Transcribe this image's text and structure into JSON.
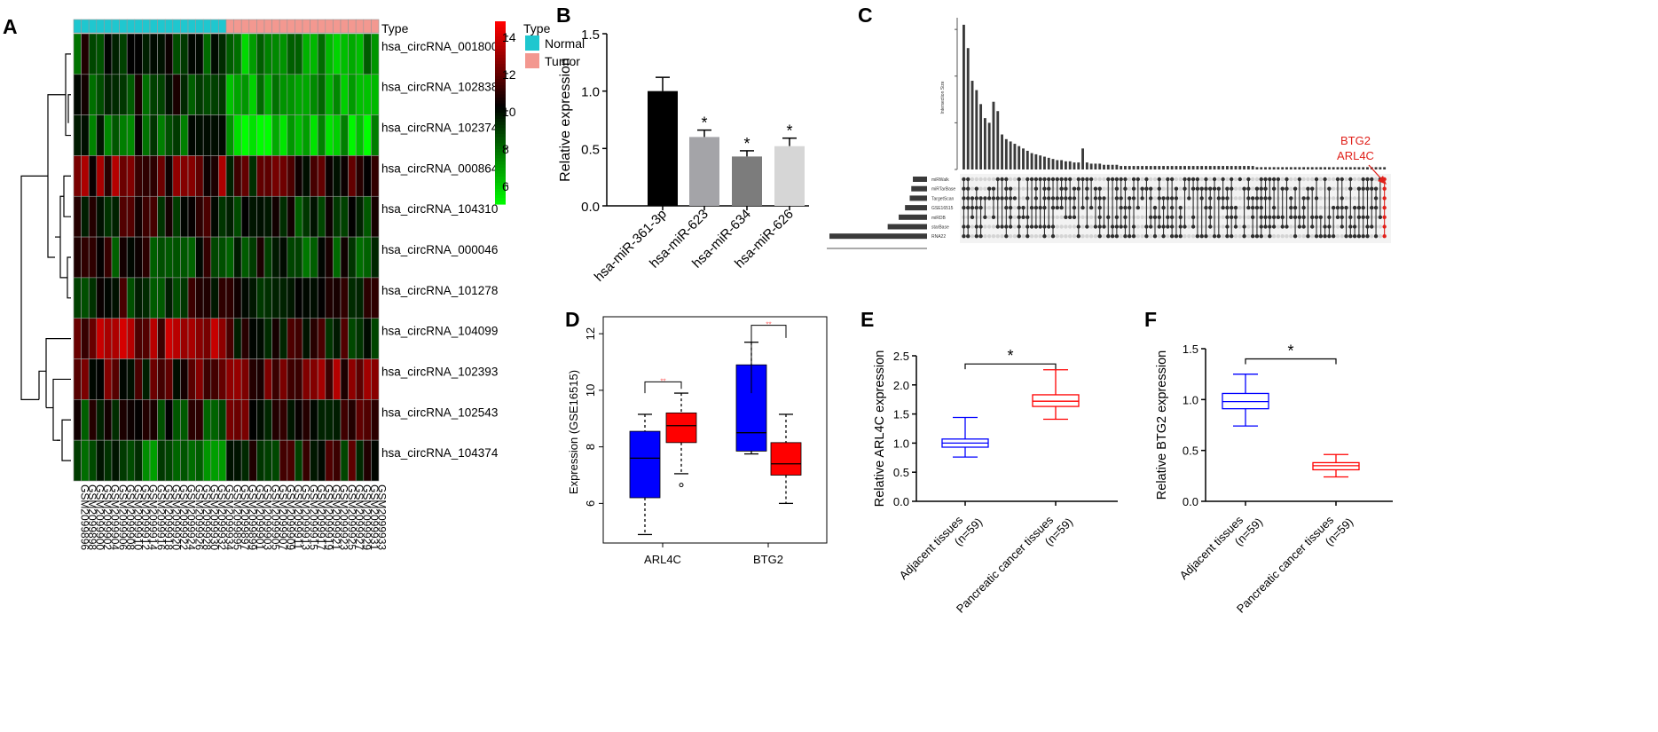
{
  "chart_data": [
    {
      "panel": "A",
      "type": "heatmap",
      "legend_title": "Type",
      "type_legend": [
        {
          "label": "Normal",
          "color": "#1FC7CF"
        },
        {
          "label": "Tumor",
          "color": "#F39890"
        }
      ],
      "color_scale": {
        "min": 5,
        "max": 14.8,
        "ticks": [
          6,
          8,
          10,
          12,
          14
        ],
        "low": "#00FF00",
        "mid": "#000000",
        "high": "#FF0000"
      },
      "row_labels": [
        "hsa_circRNA_001800",
        "hsa_circRNA_102838",
        "hsa_circRNA_102374",
        "hsa_circRNA_000864",
        "hsa_circRNA_104310",
        "hsa_circRNA_000046",
        "hsa_circRNA_101278",
        "hsa_circRNA_104099",
        "hsa_circRNA_102393",
        "hsa_circRNA_102543",
        "hsa_circRNA_104374"
      ],
      "col_labels": [
        "GSM2099896",
        "GSM2099898",
        "GSM2099900",
        "GSM2099902",
        "GSM2099904",
        "GSM2099906",
        "GSM2099908",
        "GSM2099910",
        "GSM2099912",
        "GSM2099914",
        "GSM2099916",
        "GSM2099918",
        "GSM2099920",
        "GSM2099922",
        "GSM2099924",
        "GSM2099926",
        "GSM2099928",
        "GSM2099930",
        "GSM2099932",
        "GSM2099934",
        "GSM2099895",
        "GSM2099897",
        "GSM2099899",
        "GSM2099901",
        "GSM2099903",
        "GSM2099905",
        "GSM2099907",
        "GSM2099909",
        "GSM2099911",
        "GSM2099913",
        "GSM2099915",
        "GSM2099917",
        "GSM2099919",
        "GSM2099921",
        "GSM2099923",
        "GSM2099925",
        "GSM2099927",
        "GSM2099929",
        "GSM2099931",
        "GSM2099933"
      ],
      "col_types": [
        "Normal",
        "Normal",
        "Normal",
        "Normal",
        "Normal",
        "Normal",
        "Normal",
        "Normal",
        "Normal",
        "Normal",
        "Normal",
        "Normal",
        "Normal",
        "Normal",
        "Normal",
        "Normal",
        "Normal",
        "Normal",
        "Normal",
        "Normal",
        "Tumor",
        "Tumor",
        "Tumor",
        "Tumor",
        "Tumor",
        "Tumor",
        "Tumor",
        "Tumor",
        "Tumor",
        "Tumor",
        "Tumor",
        "Tumor",
        "Tumor",
        "Tumor",
        "Tumor",
        "Tumor",
        "Tumor",
        "Tumor",
        "Tumor",
        "Tumor"
      ],
      "row_profiles": [
        {
          "normal": 9.5,
          "tumor": 7.0
        },
        {
          "normal": 9.4,
          "tumor": 6.8
        },
        {
          "normal": 8.8,
          "tumor": 6.4
        },
        {
          "normal": 12.0,
          "tumor": 10.8
        },
        {
          "normal": 10.2,
          "tumor": 9.8
        },
        {
          "normal": 9.8,
          "tumor": 9.2
        },
        {
          "normal": 10.0,
          "tumor": 9.6
        },
        {
          "normal": 12.6,
          "tumor": 10.4
        },
        {
          "normal": 11.2,
          "tumor": 12.2
        },
        {
          "normal": 9.6,
          "tumor": 11.0
        },
        {
          "normal": 8.4,
          "tumor": 10.4
        }
      ]
    },
    {
      "panel": "B",
      "type": "bar",
      "categories": [
        "hsa-miR-361-3p",
        "hsa-miR-623",
        "hsa-miR-634",
        "hsa-miR-626"
      ],
      "values": [
        1.0,
        0.6,
        0.43,
        0.52
      ],
      "errors": [
        0.12,
        0.06,
        0.05,
        0.07
      ],
      "significance": [
        "",
        "*",
        "*",
        "*"
      ],
      "colors": [
        "#000000",
        "#A4A4A8",
        "#7C7C7C",
        "#D6D6D6"
      ],
      "ylabel": "Relative expression",
      "ylim": [
        0,
        1.5
      ],
      "yticks": [
        "0.0",
        "0.5",
        "1.0",
        "1.5"
      ]
    },
    {
      "panel": "C",
      "type": "bar",
      "title": "Intersection Size",
      "upset_annotation": [
        "BTG2",
        "ARL4C"
      ],
      "intersection_sizes": [
        12.4,
        10.4,
        7.6,
        6.8,
        5.6,
        4.4,
        4.0,
        5.8,
        5.0,
        3.0,
        2.6,
        2.4,
        2.2,
        2.0,
        1.8,
        1.6,
        1.4,
        1.3,
        1.2,
        1.1,
        1.0,
        0.9,
        0.8,
        0.8,
        0.7,
        0.7,
        0.6,
        0.6,
        1.8,
        0.6,
        0.5,
        0.5,
        0.5,
        0.4,
        0.4,
        0.4,
        0.4,
        0.3,
        0.3,
        0.3,
        0.3,
        0.3,
        0.3,
        0.3,
        0.3,
        0.3,
        0.3,
        0.3,
        0.3,
        0.3,
        0.3,
        0.3,
        0.3,
        0.3,
        0.3,
        0.3,
        0.3,
        0.3,
        0.3,
        0.3,
        0.3,
        0.3,
        0.3,
        0.3,
        0.3,
        0.3,
        0.3,
        0.3,
        0.3,
        0.2,
        0.2,
        0.2,
        0.2,
        0.2,
        0.2,
        0.2,
        0.2,
        0.2,
        0.2,
        0.2,
        0.2,
        0.2,
        0.2,
        0.2,
        0.2,
        0.2,
        0.2,
        0.2,
        0.2,
        0.2,
        0.2,
        0.2,
        0.2,
        0.2,
        0.2,
        0.2,
        0.2,
        0.2,
        0.2,
        0.2
      ],
      "set_sizes": [
        0.9,
        1.0,
        1.1,
        1.4,
        1.8,
        2.5,
        6.2
      ],
      "set_labels": [
        "miRWalk",
        "miRTarBase",
        "TargetScan",
        "GSE16515",
        "miRDB",
        "starBase",
        "RNA22"
      ],
      "ylim": [
        0,
        13
      ]
    },
    {
      "panel": "D",
      "type": "box",
      "categories": [
        "ARL4C",
        "BTG2"
      ],
      "ylabel": "Expression (GSE16515)",
      "ylim": [
        4.6,
        12.6
      ],
      "yticks": [
        "6",
        "8",
        "10",
        "12"
      ],
      "boxes": [
        {
          "group": "ARL4C",
          "color": "#0000FF",
          "whisker_low": 4.9,
          "q1": 6.2,
          "median": 7.6,
          "q3": 8.55,
          "whisker_high": 9.15,
          "outliers": []
        },
        {
          "group": "ARL4C",
          "color": "#FF0000",
          "whisker_low": 7.05,
          "q1": 8.15,
          "median": 8.75,
          "q3": 9.2,
          "whisker_high": 9.9,
          "outliers": [
            6.65
          ]
        },
        {
          "group": "BTG2",
          "color": "#0000FF",
          "whisker_low": 7.75,
          "q1": 7.85,
          "median": 8.5,
          "q3": 10.9,
          "whisker_high": 11.7,
          "outliers": []
        },
        {
          "group": "BTG2",
          "color": "#FF0000",
          "whisker_low": 6.0,
          "q1": 7.0,
          "median": 7.4,
          "q3": 8.15,
          "whisker_high": 9.15,
          "outliers": []
        }
      ],
      "significance": [
        "**",
        "**"
      ]
    },
    {
      "panel": "E",
      "type": "box",
      "categories": [
        "Adjacent tissues\n(n=59)",
        "Pancreatic cancer tissues\n(n=59)"
      ],
      "ylabel": "Relative ARL4C expression",
      "ylim": [
        0,
        2.5
      ],
      "yticks": [
        "0.0",
        "0.5",
        "1.0",
        "1.5",
        "2.0",
        "2.5"
      ],
      "boxes": [
        {
          "color": "#0000FF",
          "whisker_low": 0.76,
          "q1": 0.93,
          "median": 1.0,
          "q3": 1.07,
          "whisker_high": 1.44
        },
        {
          "color": "#FF0000",
          "whisker_low": 1.41,
          "q1": 1.63,
          "median": 1.72,
          "q3": 1.83,
          "whisker_high": 2.26
        }
      ],
      "significance": "*"
    },
    {
      "panel": "F",
      "type": "box",
      "categories": [
        "Adjacent tissues\n(n=59)",
        "Pancreatic cancer tissues\n(n=59)"
      ],
      "ylabel": "Relative BTG2 expression",
      "ylim": [
        0,
        1.5
      ],
      "yticks": [
        "0.0",
        "0.5",
        "1.0",
        "1.5"
      ],
      "boxes": [
        {
          "color": "#0000FF",
          "whisker_low": 0.74,
          "q1": 0.91,
          "median": 0.98,
          "q3": 1.06,
          "whisker_high": 1.25
        },
        {
          "color": "#FF0000",
          "whisker_low": 0.24,
          "q1": 0.31,
          "median": 0.35,
          "q3": 0.38,
          "whisker_high": 0.46
        }
      ],
      "significance": "*"
    }
  ]
}
